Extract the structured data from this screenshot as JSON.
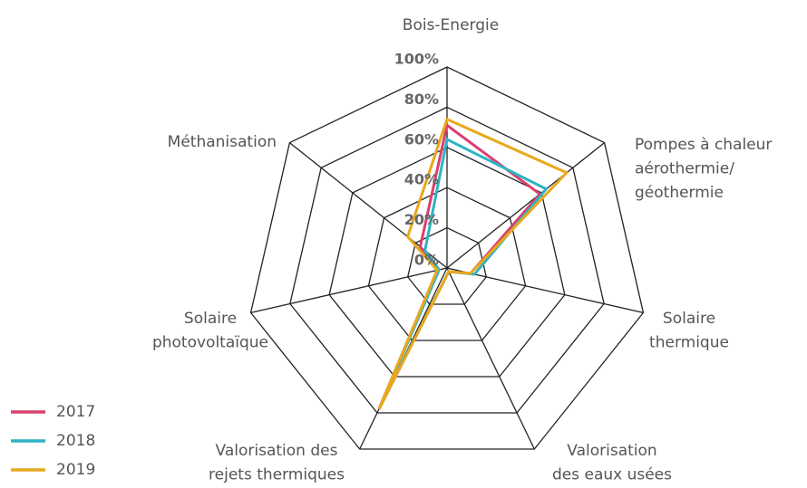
{
  "chart_data": {
    "type": "radar",
    "categories": [
      [
        "Bois-Energie"
      ],
      [
        "Pompes à chaleur",
        "aérothermie/",
        "géothermie"
      ],
      [
        "Solaire",
        "thermique"
      ],
      [
        "Valorisation",
        "des eaux usées"
      ],
      [
        "Valorisation des",
        "rejets thermiques"
      ],
      [
        "Solaire",
        "photovoltaïque"
      ],
      [
        "Méthanisation"
      ]
    ],
    "series": [
      {
        "name": "2017",
        "color": "#d9406e",
        "values": [
          71,
          59,
          12,
          2,
          78,
          5,
          17
        ]
      },
      {
        "name": "2018",
        "color": "#2fb3c4",
        "values": [
          64,
          63,
          14,
          2,
          78,
          4,
          14
        ]
      },
      {
        "name": "2019",
        "color": "#e9a81e",
        "values": [
          74,
          76,
          12,
          2,
          78,
          5,
          25
        ]
      }
    ],
    "ylim": [
      0,
      100
    ],
    "yticks": [
      {
        "value": 0,
        "label": "0%"
      },
      {
        "value": 20,
        "label": "20%"
      },
      {
        "value": 40,
        "label": "40%"
      },
      {
        "value": 60,
        "label": "60%"
      },
      {
        "value": 80,
        "label": "80%"
      },
      {
        "value": 100,
        "label": "100%"
      }
    ],
    "legend": "bottom-left"
  }
}
